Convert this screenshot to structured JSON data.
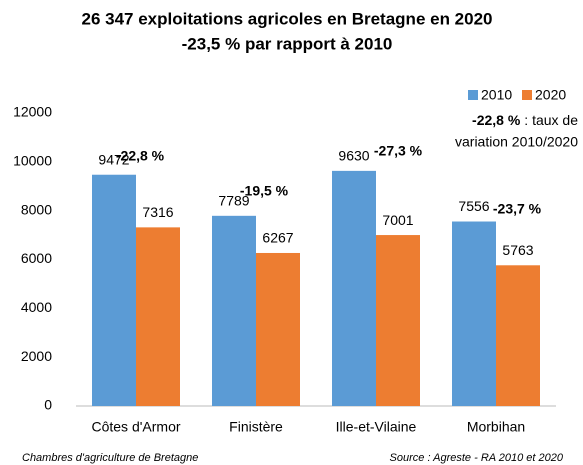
{
  "chart_data": {
    "type": "bar",
    "title": [
      "26 347 exploitations agricoles en Bretagne en 2020",
      "-23,5 % par rapport à 2010"
    ],
    "categories": [
      "Côtes d'Armor",
      "Finistère",
      "Ille-et-Vilaine",
      "Morbihan"
    ],
    "series": [
      {
        "name": "2010",
        "color": "#5b9bd5",
        "values": [
          9472,
          7789,
          9630,
          7556
        ]
      },
      {
        "name": "2020",
        "color": "#ed7d31",
        "values": [
          7316,
          6267,
          7001,
          5763
        ]
      }
    ],
    "annotations": [
      "-22,8 %",
      "-19,5 %",
      "-27,3 %",
      "-23,7 %"
    ],
    "note": {
      "bold": "-22,8 %",
      "rest": ": taux de",
      "line2": "variation 2010/2020"
    },
    "footer": {
      "left": "Chambres d'agriculture de Bretagne",
      "right": "Source : Agreste - RA 2010 et 2020"
    },
    "ylim": [
      0,
      12000
    ],
    "yticks": [
      0,
      2000,
      4000,
      6000,
      8000,
      10000,
      12000
    ],
    "grid": false,
    "legend": "top-right"
  }
}
